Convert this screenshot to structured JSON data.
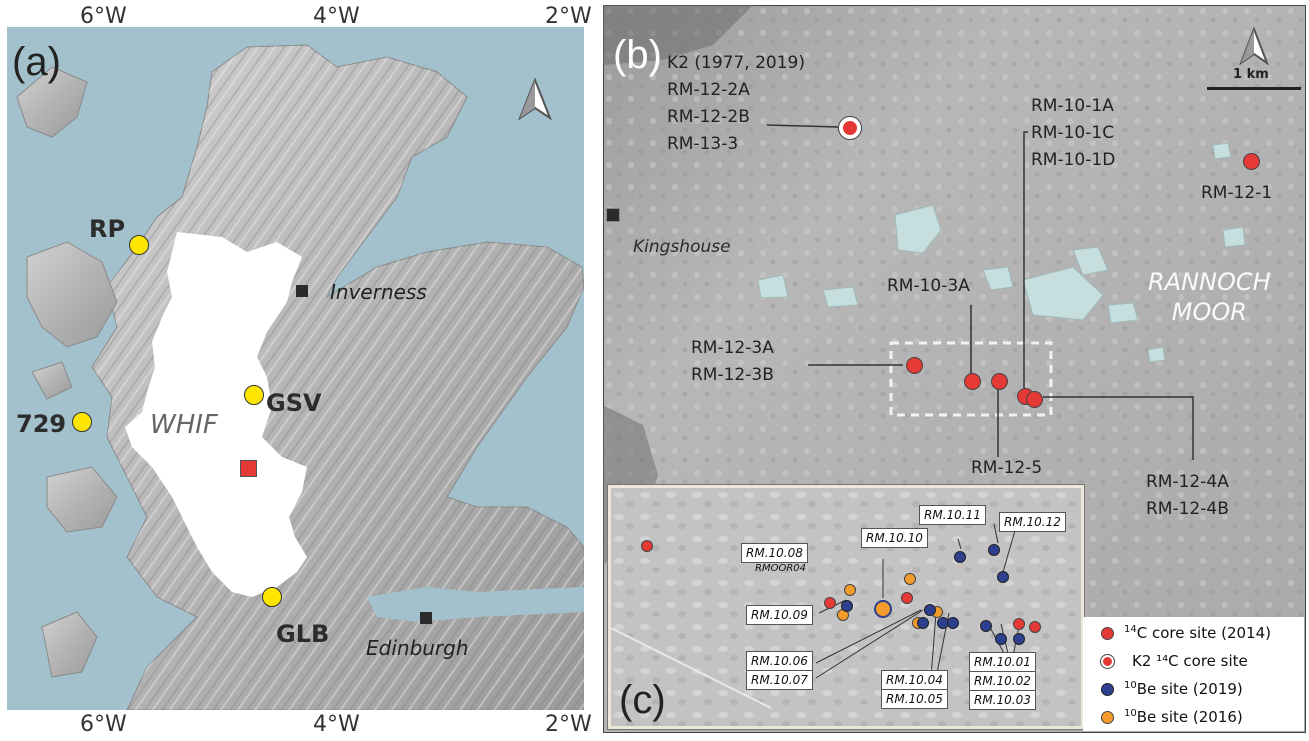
{
  "panel_a": {
    "letter": "(a)",
    "top_ticks": [
      "6°W",
      "4°W",
      "2°W"
    ],
    "bottom_ticks": [
      "6°W",
      "4°W",
      "2°W"
    ],
    "region_label": "WHIF",
    "sites": [
      "RP",
      "GSV",
      "729",
      "GLB"
    ],
    "cities": [
      "Inverness",
      "Edinburgh"
    ]
  },
  "panel_b": {
    "letter": "(b)",
    "k2_label": "K2 (1977, 2019)\nRM-12-2A\nRM-12-2B\nRM-13-3",
    "rm10_1_label": "RM-10-1A\nRM-10-1C\nRM-10-1D",
    "rm12_1_label": "RM-12-1",
    "kingshouse": "Kingshouse",
    "rm10_3a": "RM-10-3A",
    "rannoch": "RANNOCH\nMOOR",
    "rm12_3_label": "RM-12-3A\nRM-12-3B",
    "rm12_5": "RM-12-5",
    "rm12_4_label": "RM-12-4A\nRM-12-4B",
    "scale": "1 km"
  },
  "panel_c": {
    "letter": "(c)",
    "labels": {
      "l1011": "RM.10.11",
      "l1012": "RM.10.12",
      "l1010": "RM.10.10",
      "l1008": "RM.10.08",
      "rmoor": "RMOOR04",
      "l1009": "RM.10.09",
      "l1006": "RM.10.06",
      "l1007": "RM.10.07",
      "l1004": "RM.10.04",
      "l1005": "RM.10.05",
      "l1001": "RM.10.01",
      "l1002": "RM.10.02",
      "l1003": "RM.10.03"
    }
  },
  "legend": {
    "items": [
      {
        "sup": "14",
        "text": "C core site (2014)",
        "color": "#e53935"
      },
      {
        "sup": "",
        "text": "K2 ¹⁴C core site",
        "color": "#e53935"
      },
      {
        "sup": "10",
        "text": "Be site (2019)",
        "color": "#2e3f8f"
      },
      {
        "sup": "10",
        "text": "Be site (2016)",
        "color": "#f39c2b"
      }
    ]
  },
  "colors": {
    "sea": "#a3c1cc",
    "land": "#b9b9b9",
    "icefield": "#ffffff",
    "site_yellow": "#ffe600",
    "core_red": "#e53935",
    "be2019": "#2e3f8f",
    "be2016": "#f39c2b",
    "lochs": "#c6dedd"
  }
}
